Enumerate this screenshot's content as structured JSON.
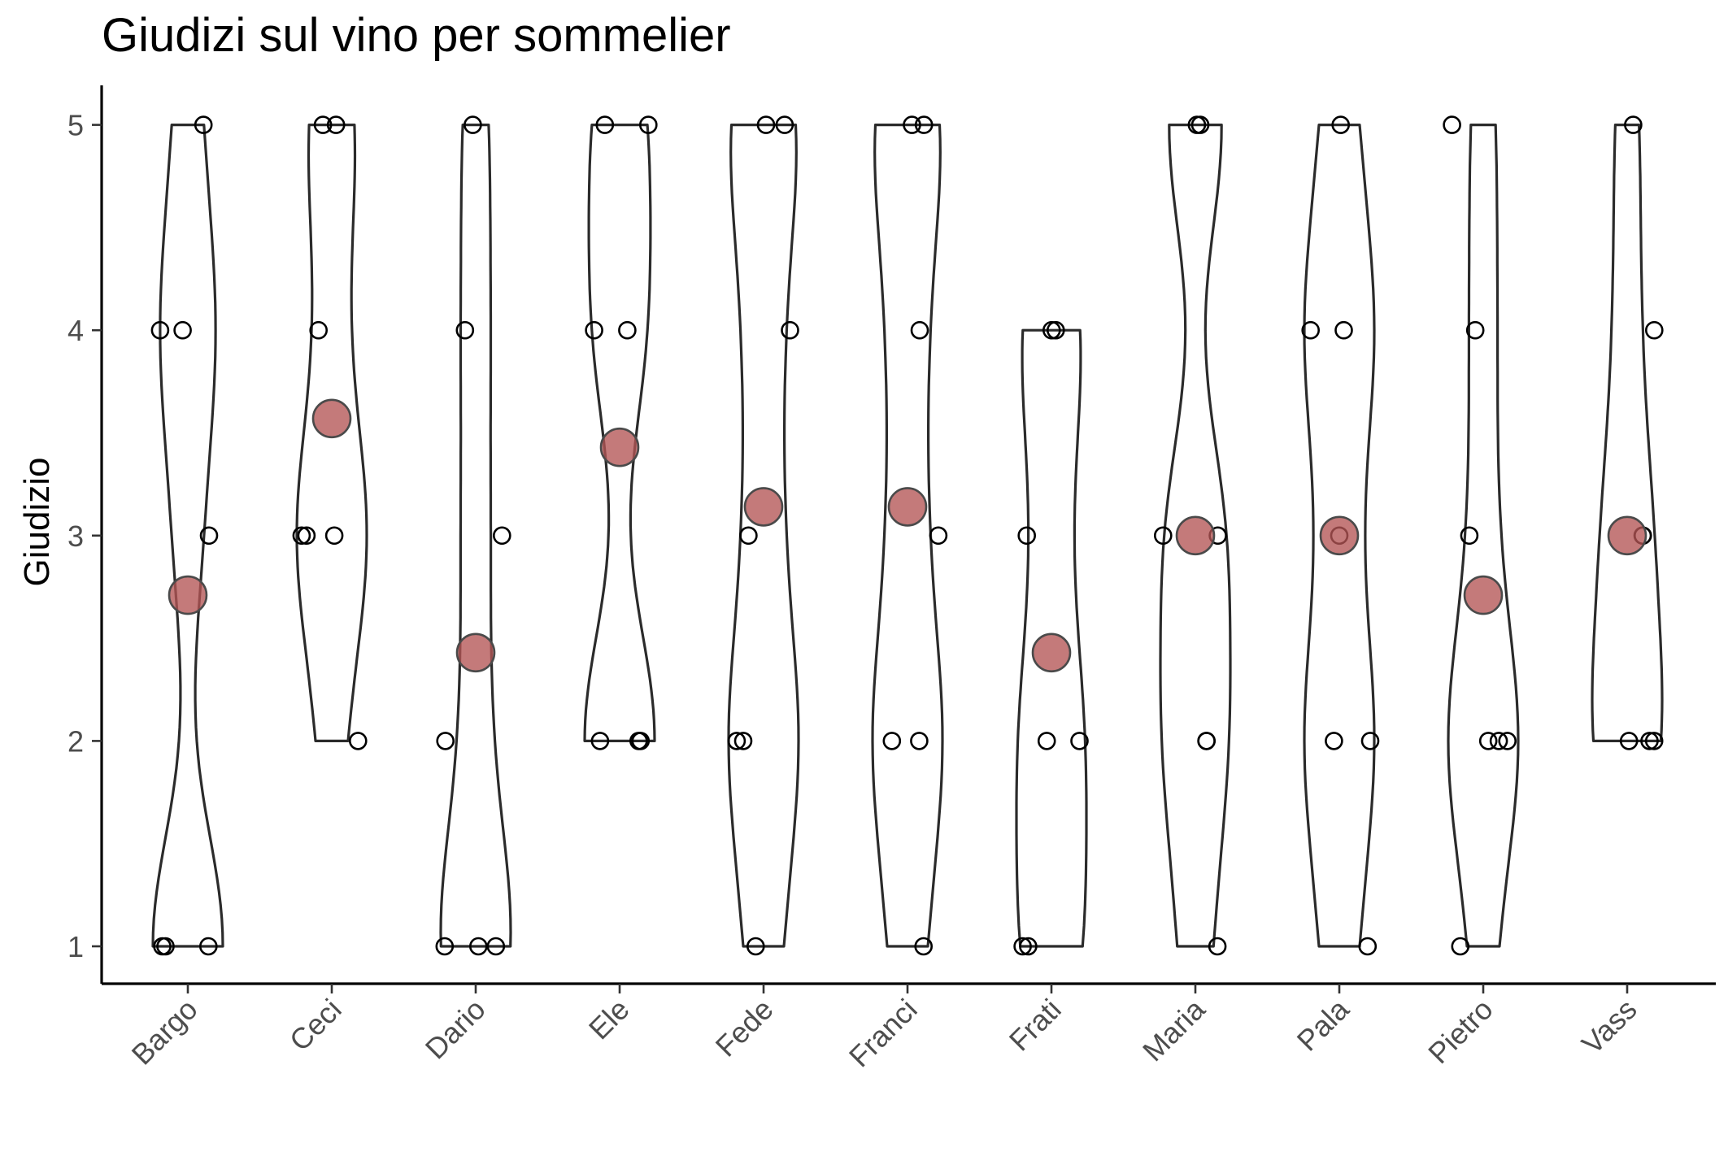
{
  "chart_data": {
    "type": "violin",
    "title": "Giudizi sul vino per sommelier",
    "xlabel": "",
    "ylabel": "Giudizio",
    "ylim": [
      0.8,
      5.2
    ],
    "yticks": [
      1,
      2,
      3,
      4,
      5
    ],
    "categories": [
      "Bargo",
      "Ceci",
      "Dario",
      "Ele",
      "Fede",
      "Franci",
      "Frati",
      "Maria",
      "Pala",
      "Pietro",
      "Vass"
    ],
    "points": [
      [
        5,
        4,
        4,
        3,
        1,
        1,
        1
      ],
      [
        5,
        5,
        4,
        3,
        3,
        3,
        2
      ],
      [
        5,
        4,
        3,
        2,
        1,
        1,
        1
      ],
      [
        5,
        5,
        4,
        4,
        2,
        2,
        2
      ],
      [
        5,
        5,
        4,
        3,
        2,
        2,
        1
      ],
      [
        5,
        5,
        4,
        3,
        2,
        2,
        1
      ],
      [
        4,
        4,
        3,
        2,
        2,
        1,
        1
      ],
      [
        5,
        5,
        3,
        3,
        2,
        2,
        1
      ],
      [
        5,
        4,
        4,
        3,
        2,
        2,
        1
      ],
      [
        5,
        4,
        3,
        2,
        2,
        2,
        1
      ],
      [
        5,
        4,
        3,
        3,
        2,
        2,
        2
      ]
    ],
    "means": [
      2.71,
      3.57,
      2.43,
      3.43,
      3.14,
      3.14,
      2.43,
      3.0,
      3.0,
      2.71,
      3.0
    ],
    "mean_color": "#b35555",
    "grid": false,
    "legend": "none"
  }
}
